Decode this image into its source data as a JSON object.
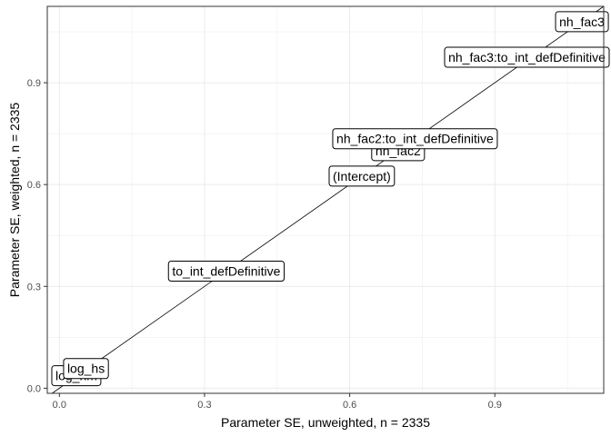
{
  "chart_data": {
    "type": "scatter",
    "xlabel": "Parameter SE, unweighted, n =  2335",
    "ylabel": "Parameter SE, weighted, n =  2335",
    "xlim": [
      -0.025,
      1.125
    ],
    "ylim": [
      -0.015,
      1.125
    ],
    "x_ticks": [
      0.0,
      0.3,
      0.6,
      0.9
    ],
    "x_tick_labels": [
      "0.0",
      "0.3",
      "0.6",
      "0.9"
    ],
    "y_ticks": [
      0.0,
      0.3,
      0.6,
      0.9
    ],
    "y_tick_labels": [
      "0.0",
      "0.3",
      "0.6",
      "0.9"
    ],
    "grid": true,
    "reference_line": {
      "type": "identity",
      "slope": 1,
      "intercept": 0
    },
    "points": [
      {
        "label": "nh_fac3",
        "x": 1.08,
        "y": 1.08
      },
      {
        "label": "nh_fac3:to_int_defDefinitive",
        "x": 0.975,
        "y": 0.975
      },
      {
        "label": "nh_fac2:to_int_defDefinitive",
        "x": 0.735,
        "y": 0.735
      },
      {
        "label": "nh_fac2",
        "x": 0.7,
        "y": 0.7
      },
      {
        "label": "(Intercept)",
        "x": 0.625,
        "y": 0.625
      },
      {
        "label": "to_int_defDefinitive",
        "x": 0.345,
        "y": 0.345
      },
      {
        "label": "log_hs",
        "x": 0.055,
        "y": 0.058
      },
      {
        "label": "log_hm",
        "x": 0.035,
        "y": 0.037
      }
    ]
  }
}
